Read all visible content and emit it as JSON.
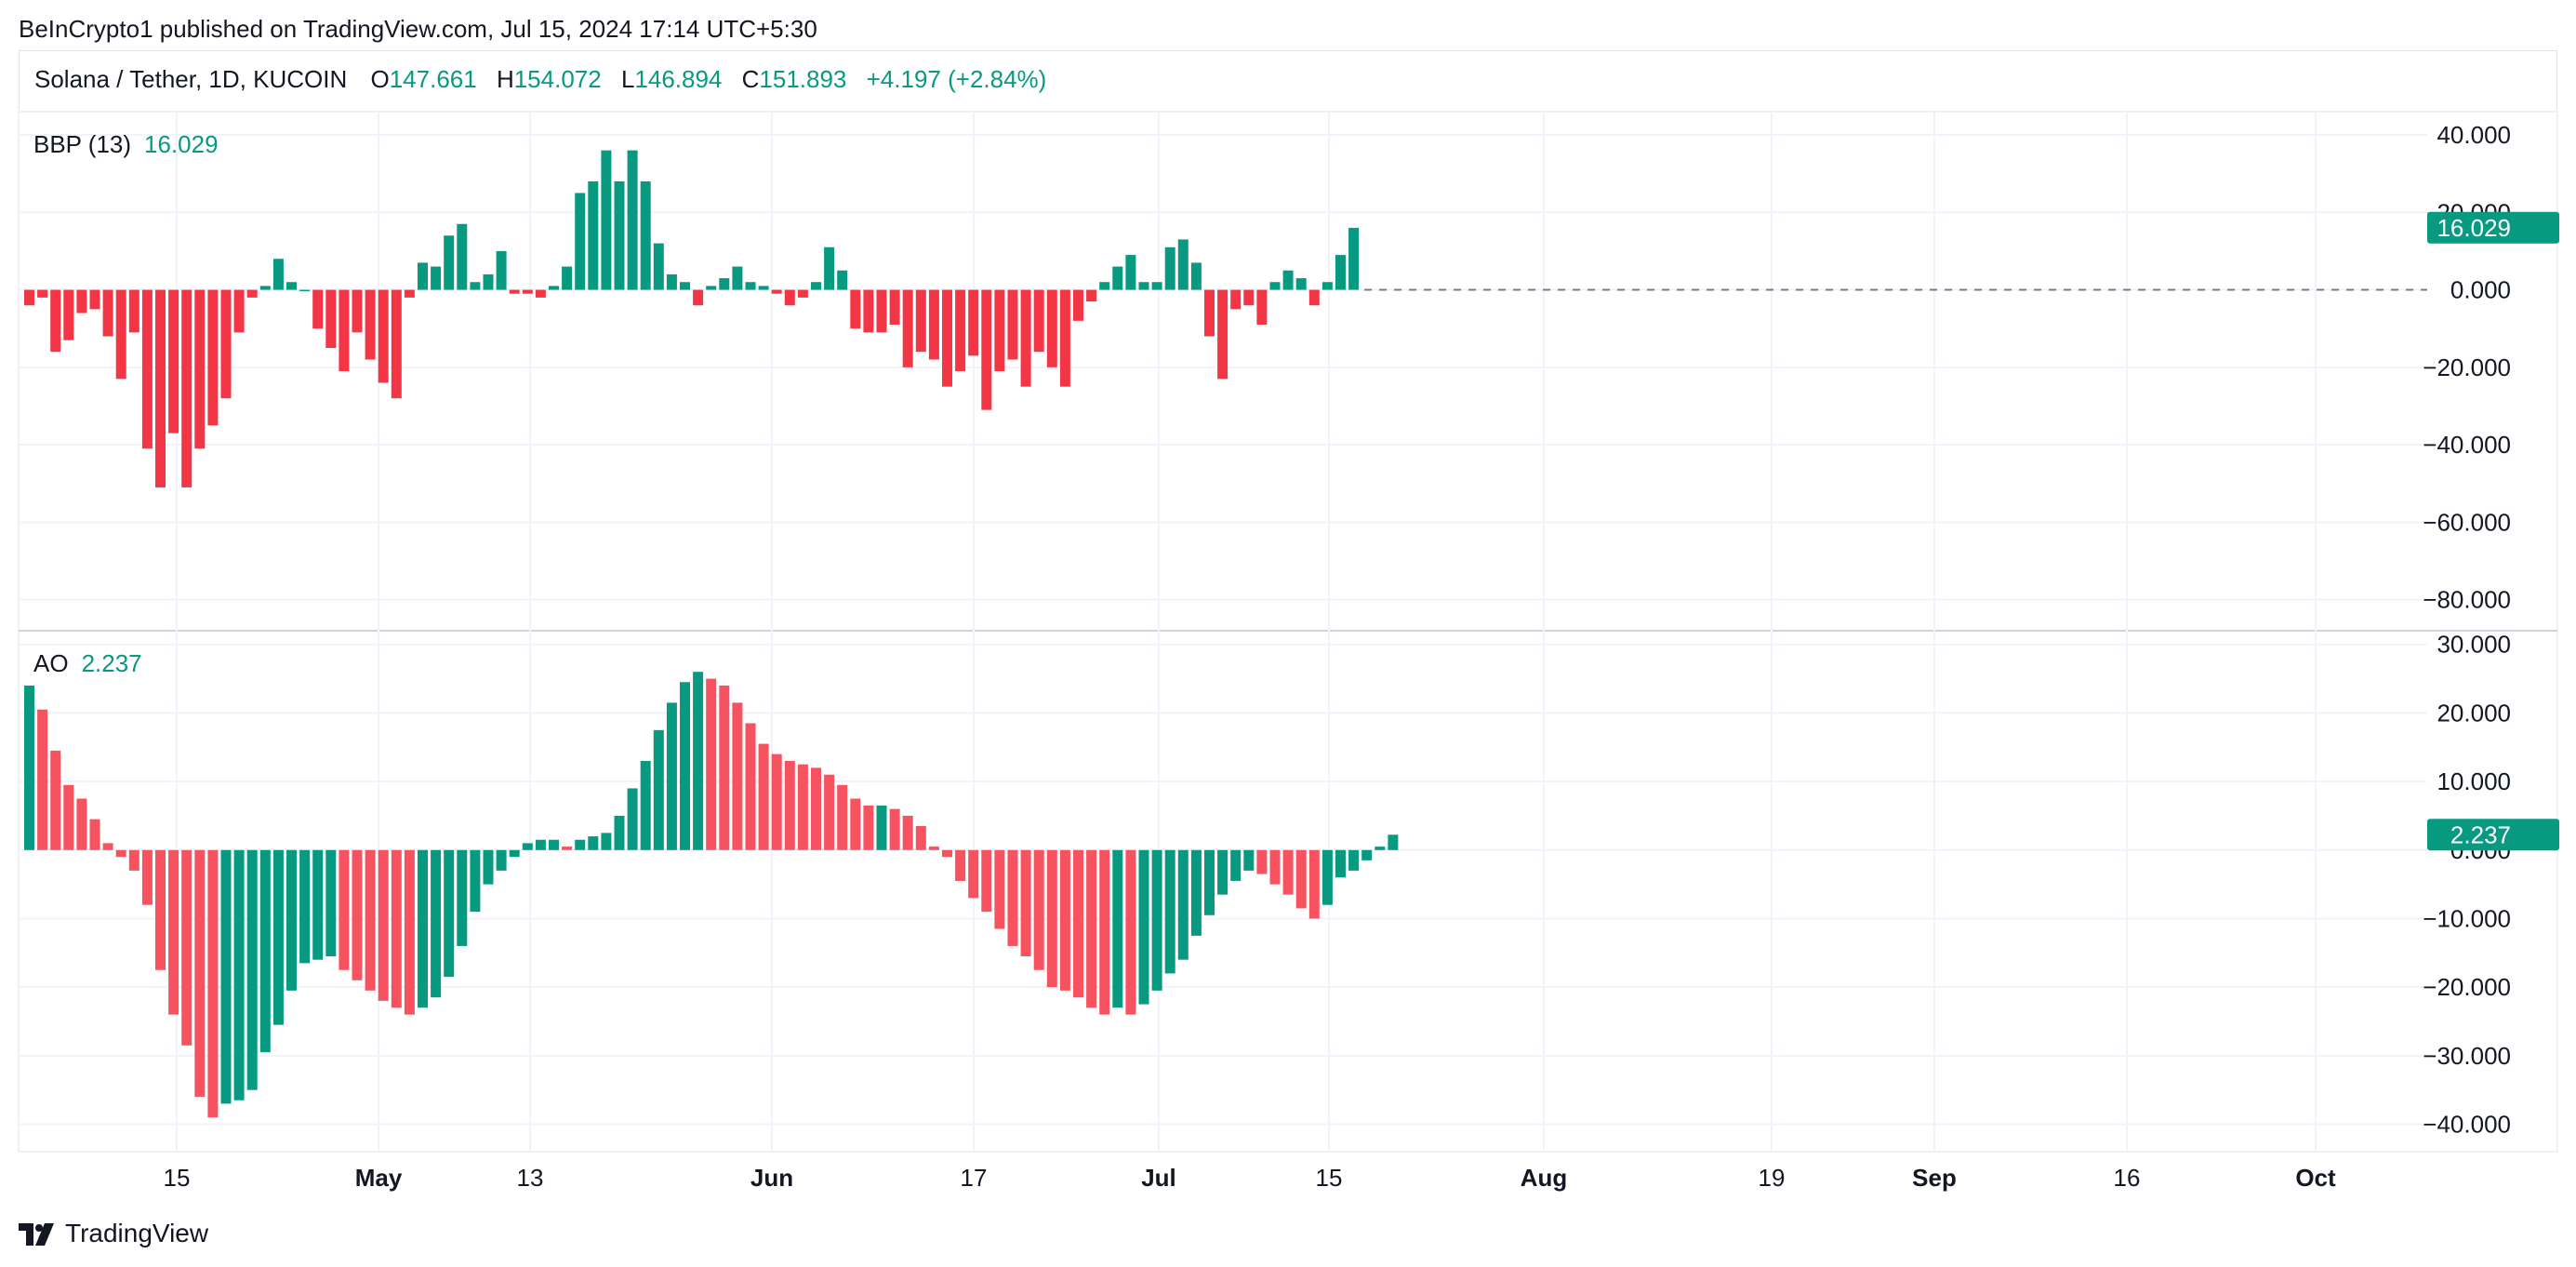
{
  "header": {
    "credit": "BeInCrypto1 published on TradingView.com, Jul 15, 2024 17:14 UTC+5:30"
  },
  "symbol": {
    "name": "Solana / Tether, 1D, KUCOIN",
    "open_label": "O",
    "open": "147.661",
    "high_label": "H",
    "high": "154.072",
    "low_label": "L",
    "low": "146.894",
    "close_label": "C",
    "close": "151.893",
    "change": "+4.197 (+2.84%)"
  },
  "brand": {
    "name": "TradingView",
    "icon": "tradingview-logo-icon"
  },
  "colors": {
    "up": "#089981",
    "down": "#f23645",
    "ao_down": "#f7525f",
    "grid": "#f0f3fa",
    "text": "#131722"
  },
  "chart_data": [
    {
      "type": "bar",
      "indicator": "BBP (13)",
      "label": "BBP (13)",
      "last_value": "16.029",
      "ylim": [
        -88,
        46
      ],
      "yticks": [
        40,
        20,
        0,
        -20,
        -40,
        -60,
        -80
      ],
      "ytick_labels": [
        "40.000",
        "20.000",
        "0.000",
        "−20.000",
        "−40.000",
        "−60.000",
        "−80.000"
      ],
      "zero_line": "dashed",
      "values": [
        -4,
        -2,
        -16,
        -13,
        -6,
        -5,
        -12,
        -23,
        -11,
        -41,
        -51,
        -37,
        -51,
        -41,
        -35,
        -28,
        -11,
        -2,
        1,
        8,
        2,
        0,
        -10,
        -15,
        -21,
        -11,
        -18,
        -24,
        -28,
        -2,
        7,
        6,
        14,
        17,
        2,
        4,
        10,
        -1,
        -1,
        -2,
        1,
        6,
        25,
        28,
        36,
        28,
        36,
        28,
        12,
        4,
        2,
        -4,
        1,
        3,
        6,
        2,
        1,
        -1,
        -4,
        -2,
        2,
        11,
        5,
        -10,
        -11,
        -11,
        -9,
        -20,
        -16,
        -18,
        -25,
        -21,
        -17,
        -31,
        -21,
        -18,
        -25,
        -16,
        -20,
        -25,
        -8,
        -3,
        2,
        6,
        9,
        2,
        2,
        11,
        13,
        7,
        -12,
        -23,
        -5,
        -4,
        -9,
        2,
        5,
        3,
        -4,
        2,
        9,
        16
      ]
    },
    {
      "type": "bar",
      "indicator": "AO",
      "label": "AO",
      "last_value": "2.237",
      "ylim": [
        -44,
        32
      ],
      "yticks": [
        30,
        20,
        10,
        0,
        -10,
        -20,
        -30,
        -40
      ],
      "ytick_labels": [
        "30.000",
        "20.000",
        "10.000",
        "0.000",
        "−10.000",
        "−20.000",
        "−30.000",
        "−40.000"
      ],
      "values": [
        24,
        20.5,
        14.5,
        9.5,
        7.5,
        4.5,
        1,
        -1,
        -3,
        -8,
        -17.5,
        -24,
        -28.5,
        -36,
        -39,
        -37,
        -36.5,
        -35,
        -29.5,
        -25.5,
        -20.5,
        -16.5,
        -16,
        -15.5,
        -17.5,
        -19,
        -20.5,
        -22,
        -23,
        -24,
        -23,
        -21.5,
        -18.5,
        -14,
        -9,
        -5,
        -3,
        -1,
        1,
        1.5,
        1.5,
        0.5,
        1.5,
        2,
        2.5,
        5,
        9,
        13,
        17.5,
        21.5,
        24.5,
        26,
        25,
        24,
        21.5,
        18.5,
        15.5,
        14,
        13,
        12.5,
        12,
        11,
        9.5,
        7.5,
        6.5,
        6.5,
        6,
        5,
        3.5,
        0.5,
        -1,
        -4.5,
        -7,
        -9,
        -11.5,
        -14,
        -15.5,
        -17.5,
        -20,
        -20.5,
        -21.5,
        -23,
        -24,
        -23,
        -24,
        -22.5,
        -20.5,
        -18,
        -16,
        -12.5,
        -9.5,
        -6.5,
        -4.5,
        -3,
        -3.5,
        -5,
        -6.5,
        -8.5,
        -10,
        -8,
        -4,
        -3,
        -1.5,
        0.5,
        2.237
      ]
    }
  ],
  "x_axis": {
    "ticks": [
      {
        "label": "15",
        "bold": false
      },
      {
        "label": "May",
        "bold": true
      },
      {
        "label": "13",
        "bold": false
      },
      {
        "label": "Jun",
        "bold": true
      },
      {
        "label": "17",
        "bold": false
      },
      {
        "label": "Jul",
        "bold": true
      },
      {
        "label": "15",
        "bold": false
      },
      {
        "label": "Aug",
        "bold": true
      },
      {
        "label": "19",
        "bold": false
      },
      {
        "label": "Sep",
        "bold": true
      },
      {
        "label": "16",
        "bold": false
      },
      {
        "label": "Oct",
        "bold": true
      }
    ]
  }
}
